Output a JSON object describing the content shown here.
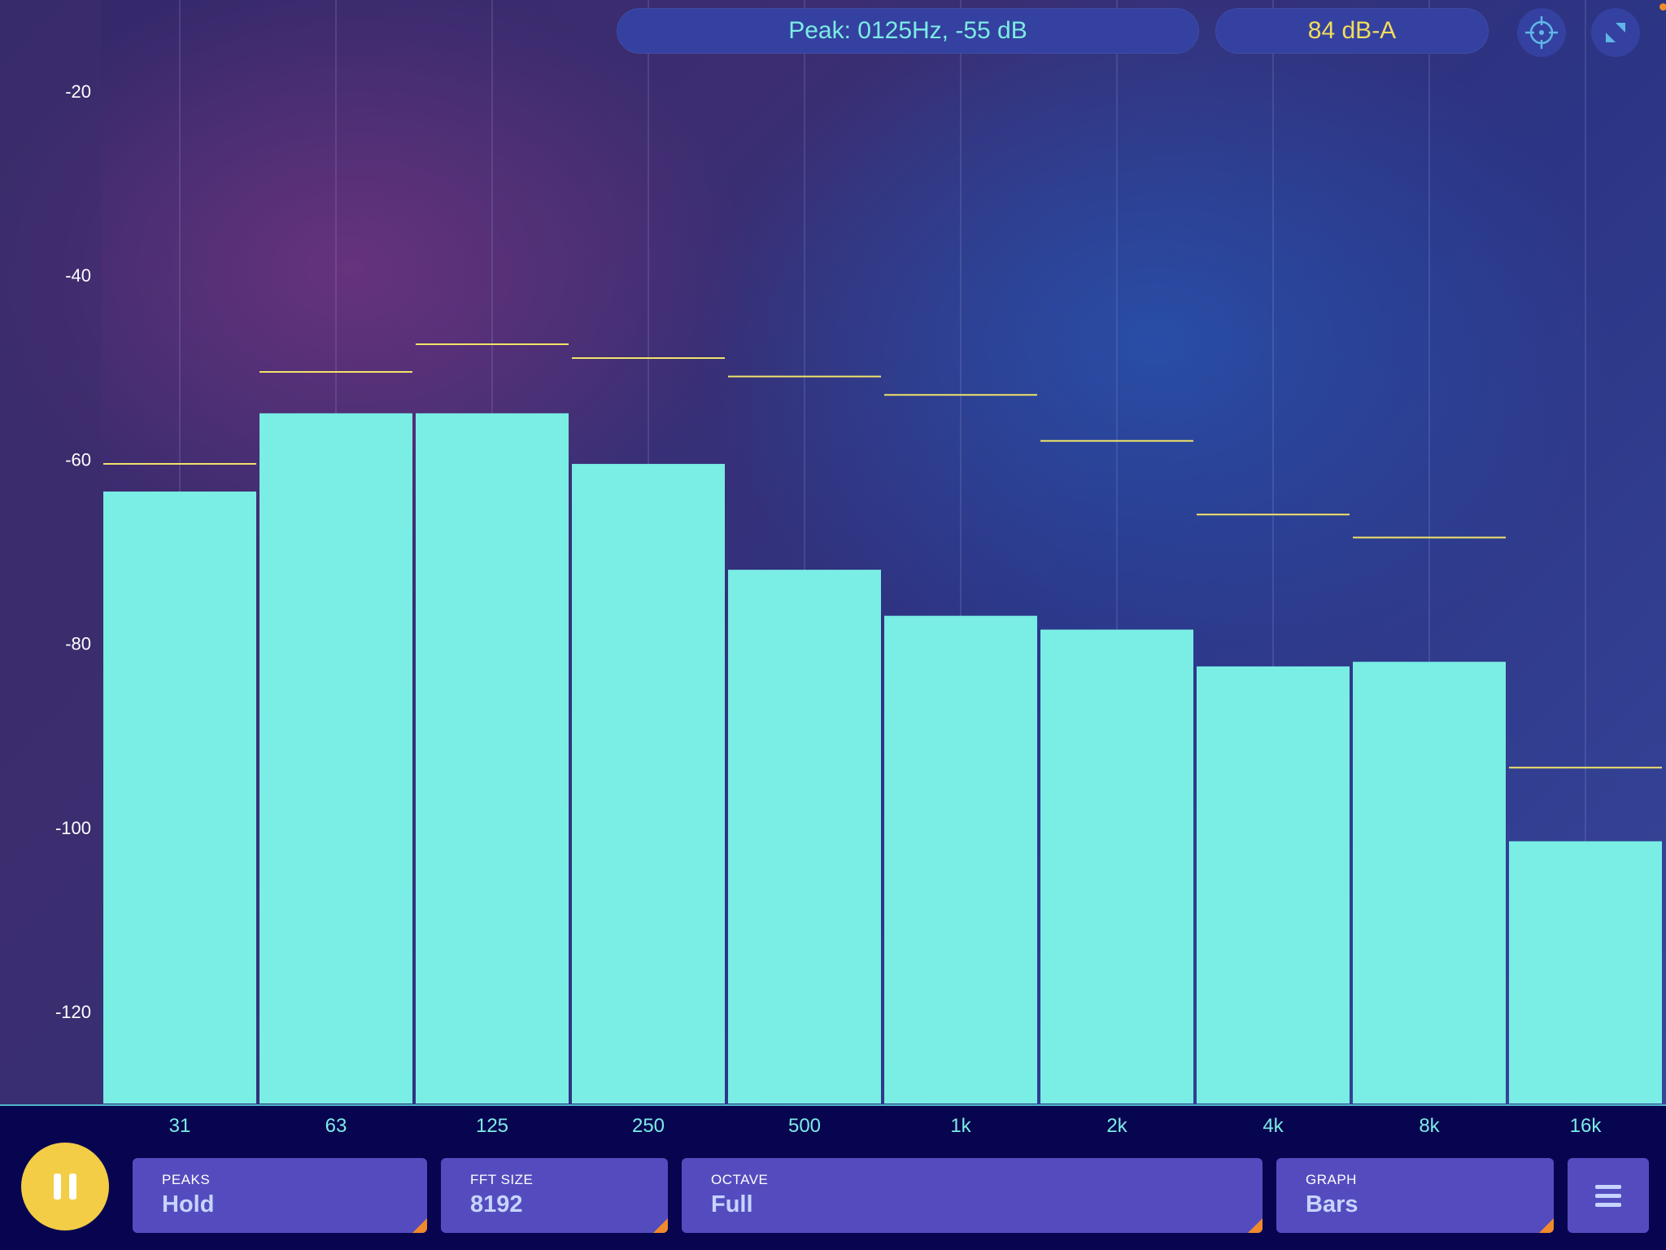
{
  "header": {
    "peak_readout": "Peak: 0125Hz, -55 dB",
    "level_readout": "84 dB-A"
  },
  "icons": {
    "target": "crosshair-icon",
    "fullscreen": "fullscreen-icon",
    "pause": "pause-icon",
    "menu": "hamburger-menu-icon"
  },
  "controls": {
    "peaks": {
      "caption": "PEAKS",
      "value": "Hold"
    },
    "fft": {
      "caption": "FFT SIZE",
      "value": "8192"
    },
    "octave": {
      "caption": "OCTAVE",
      "value": "Full"
    },
    "graph": {
      "caption": "GRAPH",
      "value": "Bars"
    }
  },
  "colors": {
    "bar": "#7aede4",
    "peak_line": "#f2e36a",
    "accent_yellow": "#f2cd45",
    "control_bg": "#544cbe"
  },
  "chart_data": {
    "type": "bar",
    "categories": [
      "31",
      "63",
      "125",
      "250",
      "500",
      "1k",
      "2k",
      "4k",
      "8k",
      "16k"
    ],
    "series": [
      {
        "values": [
          -63.5,
          -55,
          -55,
          -60.5,
          -72,
          -77,
          -78.5,
          -82.5,
          -82,
          -101.5
        ]
      },
      {
        "values": [
          -60.5,
          -50.5,
          -47.5,
          -49,
          -51,
          -53,
          -58,
          -66,
          -68.5,
          -93.5
        ]
      }
    ],
    "y_ticks": [
      "-20",
      "-40",
      "-60",
      "-80",
      "-100",
      "-120"
    ],
    "ylim": [
      -130,
      -10
    ],
    "grid": true
  }
}
